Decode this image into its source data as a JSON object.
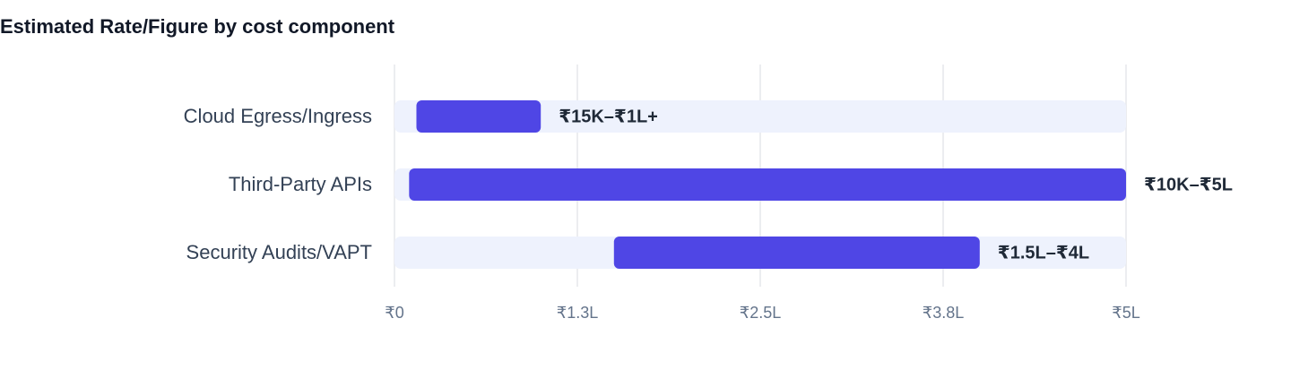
{
  "chart_data": {
    "type": "range-bar",
    "title": "Estimated Rate/Figure by cost component",
    "categories": [
      "Cloud Egress/Ingress",
      "Third-Party APIs",
      "Security Audits/VAPT"
    ],
    "values": [
      [
        15000,
        100000
      ],
      [
        10000,
        500000
      ],
      [
        150000,
        400000
      ]
    ],
    "value_labels": [
      "₹15K–₹1L+",
      "₹10K–₹5L",
      "₹1.5L–₹4L"
    ],
    "color": "#4f46e5",
    "xlim": [
      0,
      500000
    ],
    "xticks": [
      {
        "value": 0,
        "label": "₹0"
      },
      {
        "value": 125000,
        "label": "₹1.3L"
      },
      {
        "value": 250000,
        "label": "₹2.5L"
      },
      {
        "value": 375000,
        "label": "₹3.8L"
      },
      {
        "value": 500000,
        "label": "₹5L"
      }
    ],
    "grid": true
  }
}
